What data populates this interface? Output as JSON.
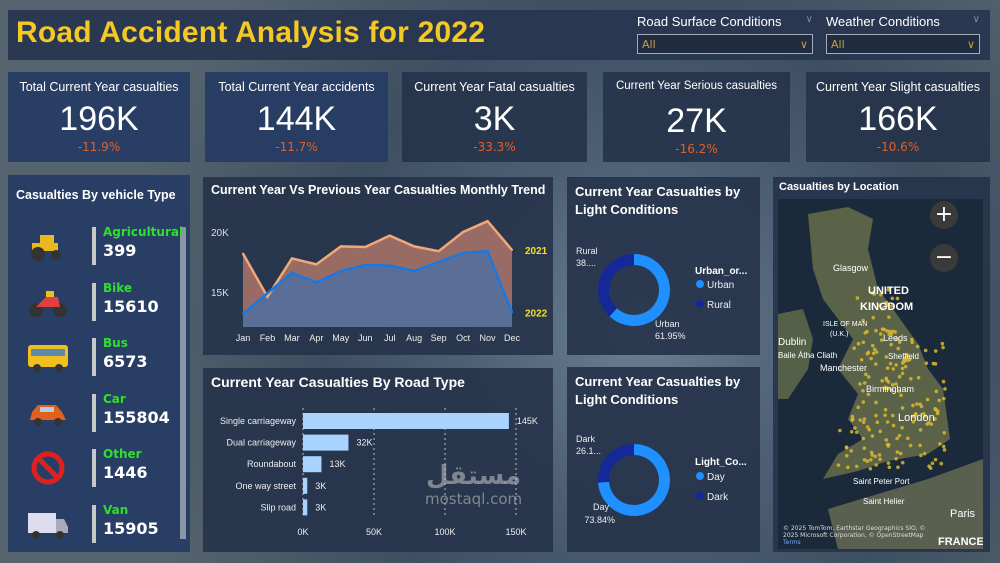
{
  "header": {
    "title": "Road Accident Analysis for 2022",
    "slicers": [
      {
        "label": "Road Surface Conditions",
        "value": "All"
      },
      {
        "label": "Weather Conditions",
        "value": "All"
      }
    ]
  },
  "kpis": [
    {
      "title": "Total Current Year casualties",
      "value": "196K",
      "change": "-11.9%"
    },
    {
      "title": "Total Current Year accidents",
      "value": "144K",
      "change": "-11.7%"
    },
    {
      "title": "Current Year Fatal casualties",
      "value": "3K",
      "change": "-33.3%"
    },
    {
      "title": "Current Year Serious casualties",
      "value": "27K",
      "change": "-16.2%"
    },
    {
      "title": "Current Year Slight casualties",
      "value": "166K",
      "change": "-10.6%"
    }
  ],
  "vehicles": {
    "title": "Casualties By vehicle Type",
    "items": [
      {
        "name": "Agricultural",
        "count": "399",
        "icon": "tractor-icon"
      },
      {
        "name": "Bike",
        "count": "15610",
        "icon": "motorbike-icon"
      },
      {
        "name": "Bus",
        "count": "6573",
        "icon": "bus-icon"
      },
      {
        "name": "Car",
        "count": "155804",
        "icon": "car-icon"
      },
      {
        "name": "Other",
        "count": "1446",
        "icon": "prohibited-icon"
      },
      {
        "name": "Van",
        "count": "15905",
        "icon": "van-icon"
      }
    ]
  },
  "colors": {
    "accent": "#f4c925",
    "negative": "#e0602a",
    "vehicle_name": "#2ee02e",
    "series_2021": "#f0a878",
    "series_2022": "#1a78e0",
    "donut_primary": "#1e90ff",
    "donut_secondary": "#14289a",
    "bar": "#a8d4ff"
  },
  "chart_data": [
    {
      "type": "area",
      "title": "Current Year Vs Previous Year Casualties Monthly Trend",
      "categories": [
        "Jan",
        "Feb",
        "Mar",
        "Apr",
        "May",
        "Jun",
        "Jul",
        "Aug",
        "Sep",
        "Oct",
        "Nov",
        "Dec"
      ],
      "yticks": [
        "15K",
        "20K"
      ],
      "ytick_values": [
        15000,
        20000
      ],
      "series": [
        {
          "name": "2021",
          "values": [
            18200,
            14600,
            17800,
            17300,
            18800,
            18750,
            19700,
            18800,
            18400,
            20000,
            20900,
            18500
          ]
        },
        {
          "name": "2022",
          "values": [
            13200,
            14900,
            16600,
            15800,
            16750,
            17250,
            17200,
            16750,
            17500,
            18250,
            18400,
            13300
          ]
        }
      ]
    },
    {
      "type": "bar",
      "title": "Current Year Casualties By Road Type",
      "categories": [
        "Single carriageway",
        "Dual carriageway",
        "Roundabout",
        "One way street",
        "Slip road"
      ],
      "values": [
        145000,
        32000,
        13000,
        3000,
        3000
      ],
      "labels": [
        "145K",
        "32K",
        "13K",
        "3K",
        "3K"
      ],
      "xticks": [
        "0K",
        "50K",
        "100K",
        "150K"
      ],
      "xlim": [
        0,
        150000
      ]
    },
    {
      "type": "pie",
      "title": "Current Year Casualties by Light Conditions",
      "legend_title": "Urban_or...",
      "slices": [
        {
          "name": "Urban",
          "value": 61.95,
          "label": "61.95%"
        },
        {
          "name": "Rural",
          "value": 38.05,
          "label": "38...."
        }
      ]
    },
    {
      "type": "pie",
      "title": "Current Year Casualties by Light Conditions",
      "legend_title": "Light_Co...",
      "slices": [
        {
          "name": "Day",
          "value": 73.84,
          "label": "73.84%"
        },
        {
          "name": "Dark",
          "value": 26.16,
          "label": "26.1..."
        }
      ]
    }
  ],
  "map": {
    "title": "Casualties by Location",
    "labels": [
      "Glasgow",
      "UNITED",
      "KINGDOM",
      "ISLE OF MAN",
      "(U.K.)",
      "Dublin",
      "Baile Átha Cliath",
      "Manchester",
      "Leeds",
      "Sheffield",
      "Birmingham",
      "London",
      "Saint Peter Port",
      "Saint Helier",
      "Paris",
      "FRANCE"
    ],
    "attribution": "© 2025 TomTom, Earthstar Geographics SIO, © 2025 Microsoft Corporation, © OpenStreetMap",
    "terms": "Terms",
    "zoom_in": "+",
    "zoom_out": "−"
  },
  "watermark": {
    "arabic": "مستقل",
    "latin": "mostaql.com"
  }
}
